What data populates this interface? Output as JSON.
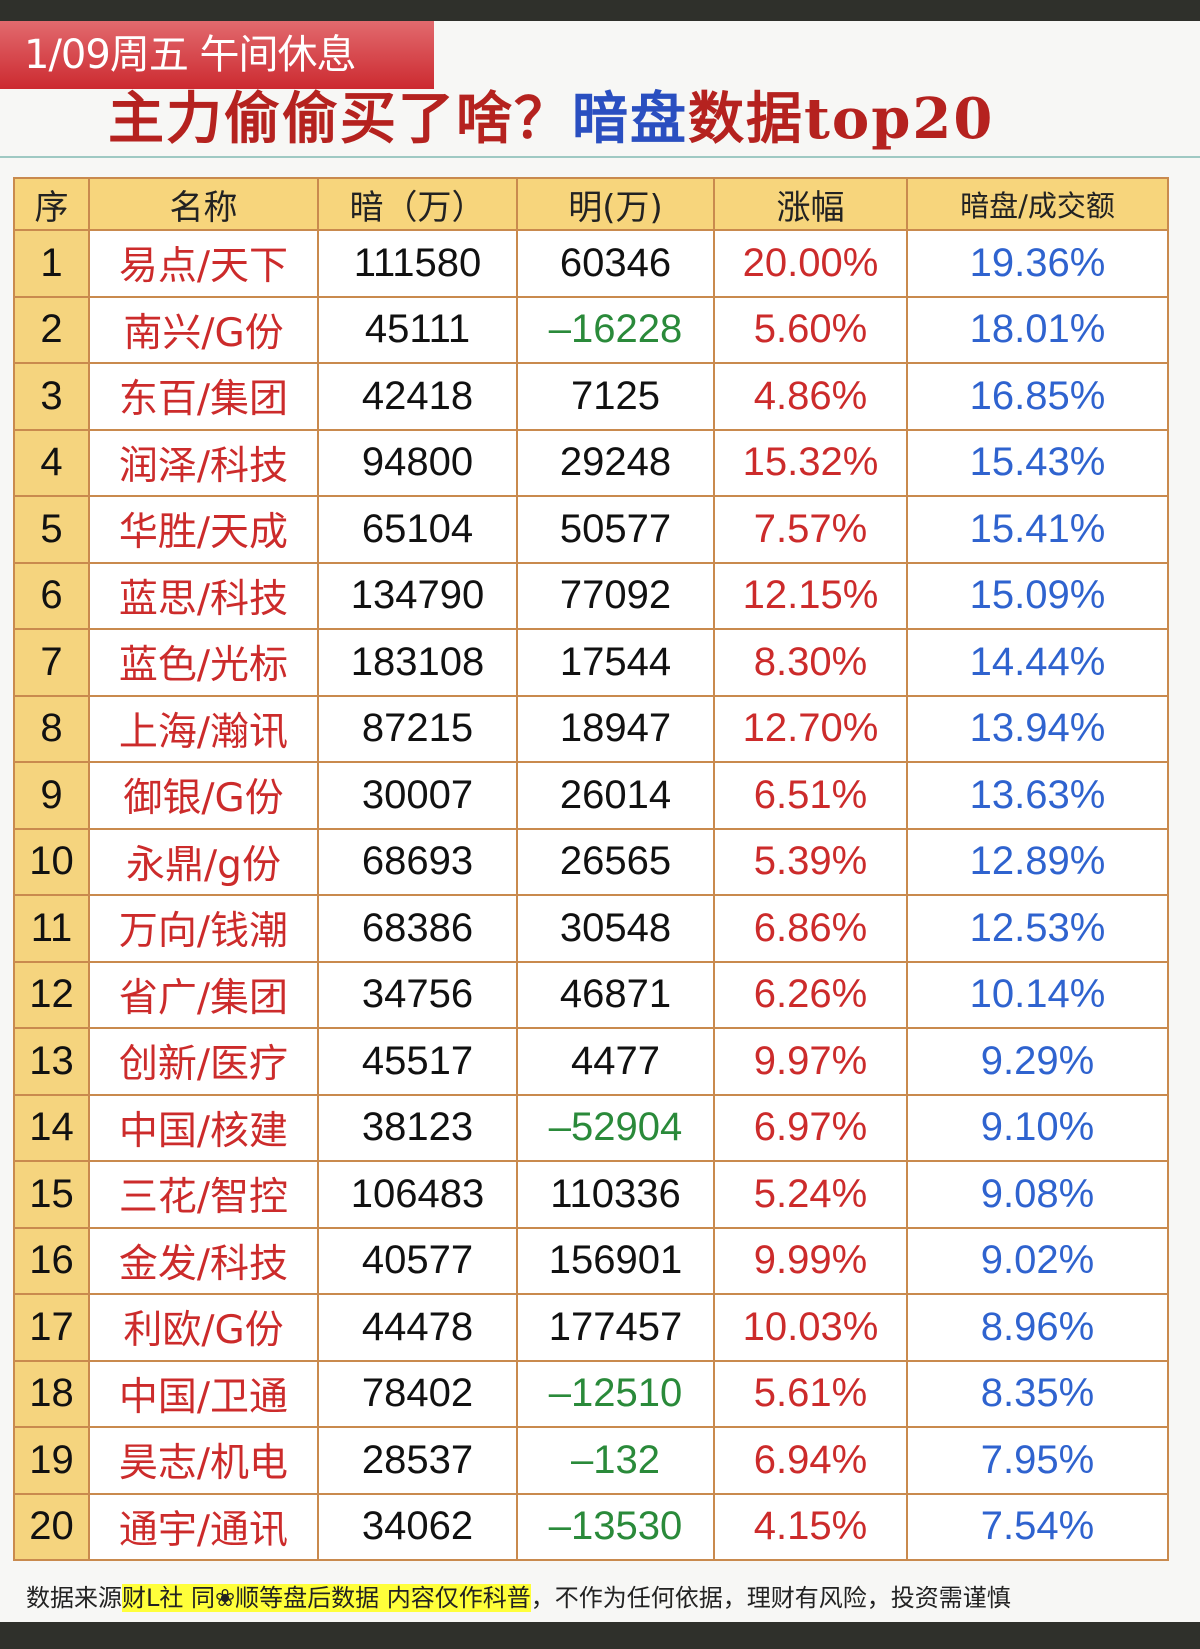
{
  "banner": {
    "date_label": "1/09周五  午间休息"
  },
  "headline": {
    "part1": "主力偷偷买了啥？",
    "part2": "暗盘",
    "part3": "数据top20"
  },
  "colors": {
    "name_red": "#cc2b2b",
    "negative_green": "#2a8a3a",
    "change_red": "#cc2b2b",
    "ratio_blue": "#2f63cf",
    "header_yellow": "#f7d57c",
    "border_brown": "#c98a4e"
  },
  "table": {
    "headers": [
      "序",
      "名称",
      "暗（万）",
      "明(万)",
      "涨幅",
      "暗盘/成交额"
    ],
    "rows": [
      {
        "seq": "1",
        "name": "易点/天下",
        "dark": "111580",
        "lit": "60346",
        "change": "20.00%",
        "ratio": "19.36%"
      },
      {
        "seq": "2",
        "name": "南兴/G份",
        "dark": "45111",
        "lit": "-16228",
        "change": "5.60%",
        "ratio": "18.01%"
      },
      {
        "seq": "3",
        "name": "东百/集团",
        "dark": "42418",
        "lit": "7125",
        "change": "4.86%",
        "ratio": "16.85%"
      },
      {
        "seq": "4",
        "name": "润泽/科技",
        "dark": "94800",
        "lit": "29248",
        "change": "15.32%",
        "ratio": "15.43%"
      },
      {
        "seq": "5",
        "name": "华胜/天成",
        "dark": "65104",
        "lit": "50577",
        "change": "7.57%",
        "ratio": "15.41%"
      },
      {
        "seq": "6",
        "name": "蓝思/科技",
        "dark": "134790",
        "lit": "77092",
        "change": "12.15%",
        "ratio": "15.09%"
      },
      {
        "seq": "7",
        "name": "蓝色/光标",
        "dark": "183108",
        "lit": "17544",
        "change": "8.30%",
        "ratio": "14.44%"
      },
      {
        "seq": "8",
        "name": "上海/瀚讯",
        "dark": "87215",
        "lit": "18947",
        "change": "12.70%",
        "ratio": "13.94%"
      },
      {
        "seq": "9",
        "name": "御银/G份",
        "dark": "30007",
        "lit": "26014",
        "change": "6.51%",
        "ratio": "13.63%"
      },
      {
        "seq": "10",
        "name": "永鼎/g份",
        "dark": "68693",
        "lit": "26565",
        "change": "5.39%",
        "ratio": "12.89%"
      },
      {
        "seq": "11",
        "name": "万向/钱潮",
        "dark": "68386",
        "lit": "30548",
        "change": "6.86%",
        "ratio": "12.53%"
      },
      {
        "seq": "12",
        "name": "省广/集团",
        "dark": "34756",
        "lit": "46871",
        "change": "6.26%",
        "ratio": "10.14%"
      },
      {
        "seq": "13",
        "name": "创新/医疗",
        "dark": "45517",
        "lit": "4477",
        "change": "9.97%",
        "ratio": "9.29%"
      },
      {
        "seq": "14",
        "name": "中国/核建",
        "dark": "38123",
        "lit": "-52904",
        "change": "6.97%",
        "ratio": "9.10%"
      },
      {
        "seq": "15",
        "name": "三花/智控",
        "dark": "106483",
        "lit": "110336",
        "change": "5.24%",
        "ratio": "9.08%"
      },
      {
        "seq": "16",
        "name": "金发/科技",
        "dark": "40577",
        "lit": "156901",
        "change": "9.99%",
        "ratio": "9.02%"
      },
      {
        "seq": "17",
        "name": "利欧/G份",
        "dark": "44478",
        "lit": "177457",
        "change": "10.03%",
        "ratio": "8.96%"
      },
      {
        "seq": "18",
        "name": "中国/卫通",
        "dark": "78402",
        "lit": "-12510",
        "change": "5.61%",
        "ratio": "8.35%"
      },
      {
        "seq": "19",
        "name": "昊志/机电",
        "dark": "28537",
        "lit": "-132",
        "change": "6.94%",
        "ratio": "7.95%"
      },
      {
        "seq": "20",
        "name": "通宇/通讯",
        "dark": "34062",
        "lit": "-13530",
        "change": "4.15%",
        "ratio": "7.54%"
      }
    ]
  },
  "footer": {
    "part1": "数据来源",
    "highlight": "财L社 同❀顺等盘后数据 内容仅作科普",
    "part2": "，不作为任何依据，理财有风险，投资需谨慎"
  },
  "chart_data": {
    "type": "table",
    "title": "1/09周五 午间休息 主力偷偷买了啥？暗盘数据top20",
    "columns": [
      "序",
      "名称",
      "暗（万）",
      "明(万)",
      "涨幅",
      "暗盘/成交额"
    ],
    "rows": [
      [
        1,
        "易点/天下",
        111580,
        60346,
        "20.00%",
        "19.36%"
      ],
      [
        2,
        "南兴/G份",
        45111,
        -16228,
        "5.60%",
        "18.01%"
      ],
      [
        3,
        "东百/集团",
        42418,
        7125,
        "4.86%",
        "16.85%"
      ],
      [
        4,
        "润泽/科技",
        94800,
        29248,
        "15.32%",
        "15.43%"
      ],
      [
        5,
        "华胜/天成",
        65104,
        50577,
        "7.57%",
        "15.41%"
      ],
      [
        6,
        "蓝思/科技",
        134790,
        77092,
        "12.15%",
        "15.09%"
      ],
      [
        7,
        "蓝色/光标",
        183108,
        17544,
        "8.30%",
        "14.44%"
      ],
      [
        8,
        "上海/瀚讯",
        87215,
        18947,
        "12.70%",
        "13.94%"
      ],
      [
        9,
        "御银/G份",
        30007,
        26014,
        "6.51%",
        "13.63%"
      ],
      [
        10,
        "永鼎/g份",
        68693,
        26565,
        "5.39%",
        "12.89%"
      ],
      [
        11,
        "万向/钱潮",
        68386,
        30548,
        "6.86%",
        "12.53%"
      ],
      [
        12,
        "省广/集团",
        34756,
        46871,
        "6.26%",
        "10.14%"
      ],
      [
        13,
        "创新/医疗",
        45517,
        4477,
        "9.97%",
        "9.29%"
      ],
      [
        14,
        "中国/核建",
        38123,
        -52904,
        "6.97%",
        "9.10%"
      ],
      [
        15,
        "三花/智控",
        106483,
        110336,
        "5.24%",
        "9.08%"
      ],
      [
        16,
        "金发/科技",
        40577,
        156901,
        "9.99%",
        "9.02%"
      ],
      [
        17,
        "利欧/G份",
        44478,
        177457,
        "10.03%",
        "8.96%"
      ],
      [
        18,
        "中国/卫通",
        78402,
        -12510,
        "5.61%",
        "8.35%"
      ],
      [
        19,
        "昊志/机电",
        28537,
        -132,
        "6.94%",
        "7.95%"
      ],
      [
        20,
        "通宇/通讯",
        34062,
        -13530,
        "4.15%",
        "7.54%"
      ]
    ]
  }
}
